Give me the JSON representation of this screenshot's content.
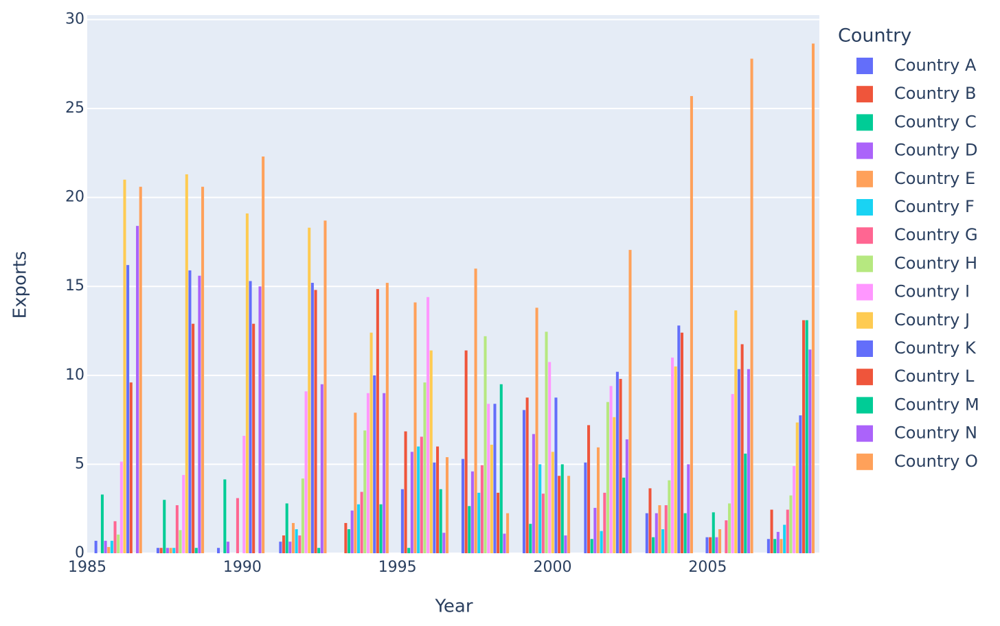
{
  "chart_data": {
    "type": "bar",
    "x_title": "Year",
    "y_title": "Exports",
    "legend_title": "Country",
    "x": [
      1986.0,
      1988.0,
      1989.95,
      1991.95,
      1993.95,
      1995.88,
      1997.83,
      1999.8,
      2001.78,
      2003.76,
      2005.7,
      2007.68
    ],
    "xlim": [
      1985,
      2008.6
    ],
    "xticks": [
      1985,
      1990,
      1995,
      2000,
      2005
    ],
    "ylim": [
      0,
      30.25
    ],
    "yticks": [
      0,
      5,
      10,
      15,
      20,
      25,
      30
    ],
    "grid": true,
    "legend": "right",
    "series": [
      {
        "name": "Country A",
        "color": "#636efa",
        "values": [
          0.7,
          0.3,
          0.3,
          0.65,
          0,
          3.6,
          5.3,
          8.05,
          5.1,
          2.25,
          0.9,
          0.8
        ]
      },
      {
        "name": "Country B",
        "color": "#ef553b",
        "values": [
          0,
          0.3,
          0,
          1.0,
          1.7,
          6.85,
          11.4,
          8.75,
          7.2,
          3.65,
          0.9,
          2.45
        ]
      },
      {
        "name": "Country C",
        "color": "#00cc96",
        "values": [
          3.3,
          3.0,
          4.15,
          2.8,
          1.35,
          0.3,
          2.65,
          1.65,
          0.8,
          0.9,
          2.3,
          0.8
        ]
      },
      {
        "name": "Country D",
        "color": "#ab63fa",
        "values": [
          0.7,
          0.3,
          0.65,
          0.65,
          2.4,
          5.7,
          4.6,
          6.7,
          2.55,
          2.25,
          0.9,
          1.2
        ]
      },
      {
        "name": "Country E",
        "color": "#ffa15a",
        "values": [
          0.35,
          0.3,
          0,
          1.7,
          7.9,
          14.1,
          16.0,
          13.8,
          5.95,
          2.7,
          1.35,
          0.8
        ]
      },
      {
        "name": "Country F",
        "color": "#19d3f3",
        "values": [
          0.7,
          0.3,
          0,
          1.35,
          2.75,
          6.0,
          3.4,
          5.0,
          1.25,
          1.35,
          0,
          1.6
        ]
      },
      {
        "name": "Country G",
        "color": "#ff6692",
        "values": [
          1.8,
          2.7,
          3.1,
          1.0,
          3.45,
          6.55,
          4.95,
          3.35,
          3.4,
          2.7,
          1.85,
          2.45
        ]
      },
      {
        "name": "Country H",
        "color": "#b6e880",
        "values": [
          1.05,
          1.3,
          0,
          4.2,
          6.9,
          9.6,
          12.2,
          12.45,
          8.5,
          4.1,
          2.8,
          3.25
        ]
      },
      {
        "name": "Country I",
        "color": "#ff97ff",
        "values": [
          5.15,
          4.4,
          6.6,
          9.1,
          9.0,
          14.4,
          8.4,
          10.75,
          9.4,
          11.0,
          8.95,
          4.9
        ]
      },
      {
        "name": "Country J",
        "color": "#fecb52",
        "values": [
          21.0,
          21.3,
          19.1,
          18.3,
          12.4,
          11.4,
          6.1,
          5.7,
          7.65,
          10.5,
          13.65,
          7.35
        ]
      },
      {
        "name": "Country K",
        "color": "#636efa",
        "values": [
          16.2,
          15.9,
          15.3,
          15.2,
          10.0,
          5.1,
          8.4,
          8.75,
          10.2,
          12.8,
          10.35,
          7.75
        ]
      },
      {
        "name": "Country L",
        "color": "#ef553b",
        "values": [
          9.6,
          12.9,
          12.9,
          14.8,
          14.85,
          6.0,
          3.4,
          4.35,
          9.8,
          12.4,
          11.75,
          13.1
        ]
      },
      {
        "name": "Country M",
        "color": "#00cc96",
        "values": [
          0,
          0.3,
          0,
          0.3,
          2.75,
          3.6,
          9.5,
          5.0,
          4.25,
          2.25,
          5.6,
          13.1
        ]
      },
      {
        "name": "Country N",
        "color": "#ab63fa",
        "values": [
          18.4,
          15.6,
          15.0,
          9.5,
          9.0,
          1.15,
          1.1,
          1.0,
          6.4,
          5.0,
          10.35,
          11.45
        ]
      },
      {
        "name": "Country O",
        "color": "#ffa15a",
        "values": [
          20.6,
          20.6,
          22.3,
          18.7,
          15.2,
          5.4,
          2.25,
          4.35,
          17.05,
          25.7,
          27.8,
          28.65
        ]
      }
    ]
  }
}
